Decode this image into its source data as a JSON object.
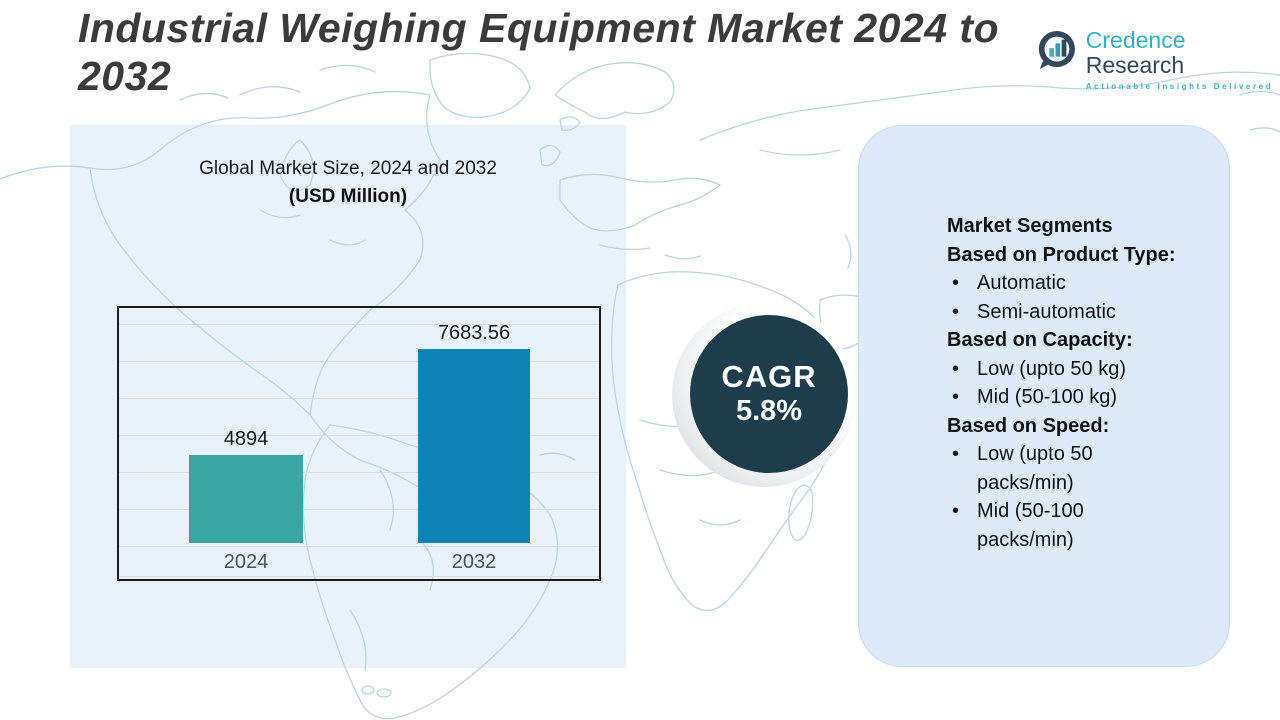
{
  "page": {
    "title": "Industrial Weighing Equipment Market 2024 to 2032"
  },
  "logo": {
    "brand_primary": "Credence",
    "brand_secondary": " Research",
    "tagline": "Actionable Insights Delivered"
  },
  "chart_panel": {
    "title": "Global Market Size, 2024 and 2032",
    "subtitle": "(USD Million)"
  },
  "chart_data": {
    "type": "bar",
    "title": "Global Market Size, 2024 and 2032 (USD Million)",
    "categories": [
      "2024",
      "2032"
    ],
    "values": [
      4894,
      7683.56
    ],
    "value_labels": [
      "4894",
      "7683.56"
    ],
    "bar_colors": [
      "#3aa6a2",
      "#0e82b5"
    ],
    "grid": true,
    "legend_position": "none",
    "ylabel": "",
    "xlabel": ""
  },
  "cagr_badge": {
    "label": "CAGR",
    "value": "5.8%"
  },
  "segments_panel": {
    "heading": "Market Segments",
    "groups": [
      {
        "label": "Based on Product Type:",
        "items": [
          "Automatic",
          "Semi-automatic"
        ]
      },
      {
        "label": "Based on Capacity:",
        "items": [
          "Low (upto 50 kg)",
          "Mid (50-100 kg)"
        ]
      },
      {
        "label": "Based on Speed:",
        "items": [
          "Low (upto 50 packs/min)",
          "Mid (50-100 packs/min)"
        ]
      }
    ]
  },
  "colors": {
    "bar_2024": "#3aa6a2",
    "bar_2032": "#0e82b5",
    "cagr_circle_bg": "#1d3d4d",
    "map_line": "#b7d5e6",
    "left_panel_bg": "#e9f1f8",
    "right_panel_bg": "#dbeaf6",
    "logo_teal": "#2db3c4",
    "logo_navy": "#32465c",
    "title_text": "#3b3b3b"
  }
}
